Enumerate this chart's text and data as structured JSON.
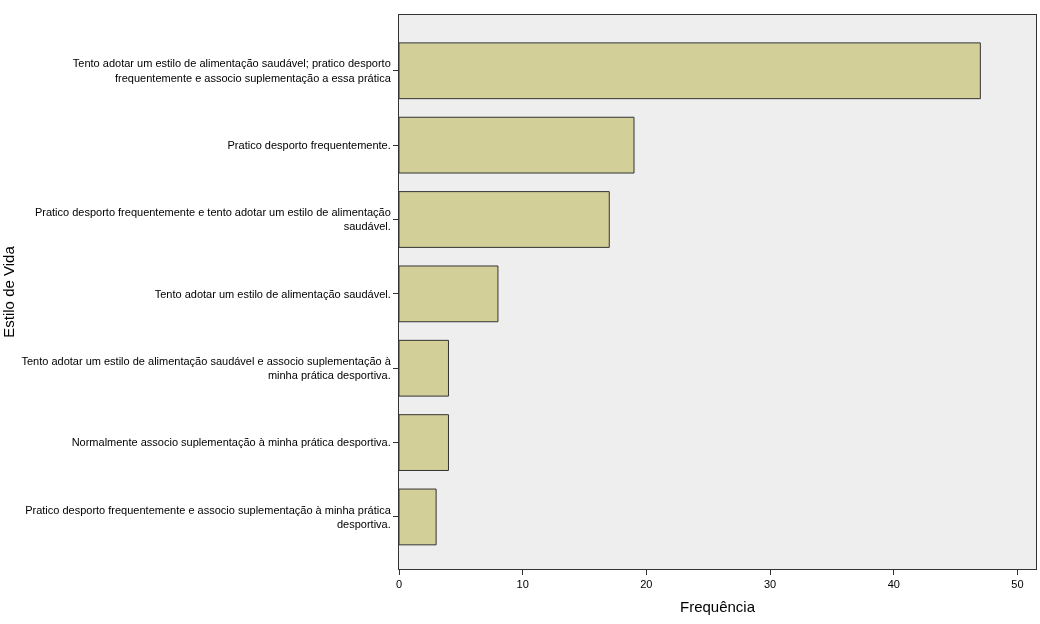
{
  "chart_data": {
    "type": "bar",
    "orientation": "horizontal",
    "xlabel": "Frequência",
    "ylabel": "Estilo de Vida",
    "categories": [
      "Tento adotar um estilo de alimentação saudável; pratico desporto\nfrequentemente e associo suplementação a essa prática",
      "Pratico desporto frequentemente.",
      "Pratico desporto frequentemente e tento adotar um estilo de alimentação\nsaudável.",
      "Tento adotar um estilo de alimentação saudável.",
      "Tento adotar um estilo de alimentação saudável e associo suplementação à\nminha prática desportiva.",
      "Normalmente associo suplementação à minha prática desportiva.",
      "Pratico desporto frequentemente e associo suplementação à minha prática\ndesportiva."
    ],
    "values": [
      47,
      19,
      17,
      8,
      4,
      4,
      3
    ],
    "color": "#d3cf98",
    "xlim": [
      0,
      51.5
    ],
    "xticks": [
      0,
      10,
      20,
      30,
      40,
      50
    ],
    "grid": false,
    "legend": false
  }
}
